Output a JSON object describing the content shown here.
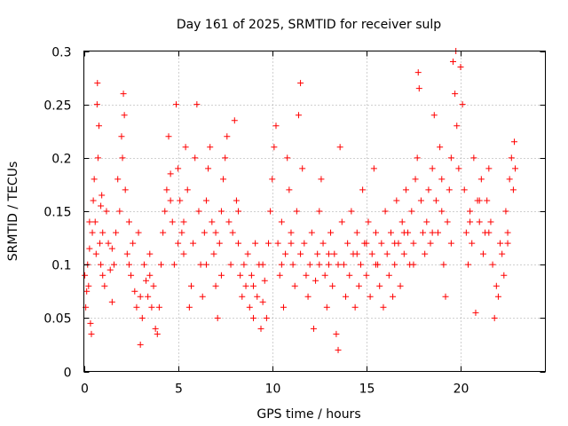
{
  "chart_data": {
    "type": "scatter",
    "title": "Day 161 of 2025, SRMTID for receiver sulp",
    "xlabel": "GPS time / hours",
    "ylabel": "SRMTID / TECUs",
    "xlim": [
      0,
      24.5
    ],
    "ylim": [
      0,
      0.3
    ],
    "xticks": [
      0,
      5,
      10,
      15,
      20
    ],
    "xtick_labels": [
      "0",
      "5",
      "10",
      "15",
      "20"
    ],
    "yticks": [
      0,
      0.05,
      0.1,
      0.15,
      0.2,
      0.25,
      0.3
    ],
    "ytick_labels": [
      "0",
      "0.05",
      "0.1",
      "0.15",
      "0.2",
      "0.25",
      "0.3"
    ],
    "grid": true,
    "marker": "plus",
    "color": "#ff0000",
    "series": [
      {
        "name": "SRMTID",
        "points": [
          [
            0.05,
            0.09
          ],
          [
            0.1,
            0.06
          ],
          [
            0.15,
            0.075
          ],
          [
            0.2,
            0.1
          ],
          [
            0.25,
            0.08
          ],
          [
            0.3,
            0.115
          ],
          [
            0.35,
            0.045
          ],
          [
            0.4,
            0.035
          ],
          [
            0.45,
            0.13
          ],
          [
            0.5,
            0.16
          ],
          [
            0.55,
            0.18
          ],
          [
            0.6,
            0.14
          ],
          [
            0.65,
            0.11
          ],
          [
            0.7,
            0.25
          ],
          [
            0.72,
            0.27
          ],
          [
            0.75,
            0.2
          ],
          [
            0.8,
            0.23
          ],
          [
            0.85,
            0.12
          ],
          [
            0.9,
            0.1
          ],
          [
            0.95,
            0.165
          ],
          [
            1.0,
            0.13
          ],
          [
            1.1,
            0.08
          ],
          [
            1.2,
            0.15
          ],
          [
            1.3,
            0.12
          ],
          [
            1.4,
            0.095
          ],
          [
            1.5,
            0.065
          ],
          [
            1.6,
            0.1
          ],
          [
            1.7,
            0.13
          ],
          [
            1.8,
            0.18
          ],
          [
            1.9,
            0.15
          ],
          [
            2.0,
            0.22
          ],
          [
            2.05,
            0.2
          ],
          [
            2.1,
            0.26
          ],
          [
            2.15,
            0.24
          ],
          [
            2.2,
            0.17
          ],
          [
            2.3,
            0.11
          ],
          [
            2.4,
            0.14
          ],
          [
            2.5,
            0.09
          ],
          [
            2.6,
            0.12
          ],
          [
            2.7,
            0.075
          ],
          [
            2.8,
            0.06
          ],
          [
            2.9,
            0.13
          ],
          [
            3.0,
            0.025
          ],
          [
            3.1,
            0.05
          ],
          [
            3.2,
            0.1
          ],
          [
            3.3,
            0.085
          ],
          [
            3.4,
            0.07
          ],
          [
            3.5,
            0.09
          ],
          [
            3.6,
            0.06
          ],
          [
            3.7,
            0.08
          ],
          [
            3.8,
            0.04
          ],
          [
            3.9,
            0.035
          ],
          [
            4.0,
            0.06
          ],
          [
            4.1,
            0.1
          ],
          [
            4.2,
            0.13
          ],
          [
            4.3,
            0.15
          ],
          [
            4.4,
            0.17
          ],
          [
            4.5,
            0.22
          ],
          [
            4.6,
            0.185
          ],
          [
            4.7,
            0.14
          ],
          [
            4.8,
            0.1
          ],
          [
            4.9,
            0.25
          ],
          [
            5.0,
            0.19
          ],
          [
            5.1,
            0.16
          ],
          [
            5.2,
            0.13
          ],
          [
            5.3,
            0.11
          ],
          [
            5.4,
            0.21
          ],
          [
            5.5,
            0.17
          ],
          [
            5.6,
            0.06
          ],
          [
            5.7,
            0.08
          ],
          [
            5.8,
            0.12
          ],
          [
            5.9,
            0.2
          ],
          [
            6.0,
            0.25
          ],
          [
            6.1,
            0.15
          ],
          [
            6.2,
            0.1
          ],
          [
            6.3,
            0.07
          ],
          [
            6.4,
            0.13
          ],
          [
            6.5,
            0.16
          ],
          [
            6.6,
            0.19
          ],
          [
            6.7,
            0.21
          ],
          [
            6.8,
            0.14
          ],
          [
            6.9,
            0.11
          ],
          [
            7.0,
            0.08
          ],
          [
            7.1,
            0.05
          ],
          [
            7.2,
            0.12
          ],
          [
            7.3,
            0.15
          ],
          [
            7.4,
            0.18
          ],
          [
            7.5,
            0.2
          ],
          [
            7.6,
            0.22
          ],
          [
            7.7,
            0.14
          ],
          [
            7.8,
            0.1
          ],
          [
            7.9,
            0.13
          ],
          [
            8.0,
            0.235
          ],
          [
            8.1,
            0.16
          ],
          [
            8.2,
            0.12
          ],
          [
            8.3,
            0.09
          ],
          [
            8.4,
            0.07
          ],
          [
            8.5,
            0.1
          ],
          [
            8.6,
            0.08
          ],
          [
            8.7,
            0.11
          ],
          [
            8.8,
            0.06
          ],
          [
            8.9,
            0.09
          ],
          [
            9.0,
            0.05
          ],
          [
            9.1,
            0.12
          ],
          [
            9.2,
            0.07
          ],
          [
            9.3,
            0.1
          ],
          [
            9.4,
            0.04
          ],
          [
            9.5,
            0.065
          ],
          [
            9.6,
            0.085
          ],
          [
            9.7,
            0.05
          ],
          [
            9.8,
            0.12
          ],
          [
            9.9,
            0.15
          ],
          [
            10.0,
            0.18
          ],
          [
            10.1,
            0.21
          ],
          [
            10.2,
            0.23
          ],
          [
            10.3,
            0.12
          ],
          [
            10.4,
            0.09
          ],
          [
            10.5,
            0.14
          ],
          [
            10.6,
            0.06
          ],
          [
            10.7,
            0.11
          ],
          [
            10.8,
            0.2
          ],
          [
            10.9,
            0.17
          ],
          [
            11.0,
            0.13
          ],
          [
            11.1,
            0.1
          ],
          [
            11.2,
            0.08
          ],
          [
            11.3,
            0.15
          ],
          [
            11.4,
            0.24
          ],
          [
            11.5,
            0.27
          ],
          [
            11.6,
            0.19
          ],
          [
            11.7,
            0.12
          ],
          [
            11.8,
            0.09
          ],
          [
            11.9,
            0.07
          ],
          [
            12.0,
            0.1
          ],
          [
            12.1,
            0.13
          ],
          [
            12.2,
            0.04
          ],
          [
            12.3,
            0.085
          ],
          [
            12.4,
            0.11
          ],
          [
            12.5,
            0.15
          ],
          [
            12.6,
            0.18
          ],
          [
            12.7,
            0.12
          ],
          [
            12.8,
            0.09
          ],
          [
            12.9,
            0.06
          ],
          [
            13.0,
            0.1
          ],
          [
            13.1,
            0.13
          ],
          [
            13.2,
            0.08
          ],
          [
            13.3,
            0.11
          ],
          [
            13.4,
            0.035
          ],
          [
            13.5,
            0.02
          ],
          [
            13.6,
            0.21
          ],
          [
            13.7,
            0.14
          ],
          [
            13.8,
            0.1
          ],
          [
            13.9,
            0.07
          ],
          [
            14.0,
            0.12
          ],
          [
            14.1,
            0.09
          ],
          [
            14.2,
            0.15
          ],
          [
            14.3,
            0.11
          ],
          [
            14.4,
            0.06
          ],
          [
            14.5,
            0.13
          ],
          [
            14.6,
            0.08
          ],
          [
            14.7,
            0.1
          ],
          [
            14.8,
            0.17
          ],
          [
            14.9,
            0.12
          ],
          [
            15.0,
            0.09
          ],
          [
            15.1,
            0.14
          ],
          [
            15.2,
            0.07
          ],
          [
            15.3,
            0.11
          ],
          [
            15.4,
            0.19
          ],
          [
            15.5,
            0.13
          ],
          [
            15.6,
            0.1
          ],
          [
            15.7,
            0.08
          ],
          [
            15.8,
            0.12
          ],
          [
            15.9,
            0.06
          ],
          [
            16.0,
            0.15
          ],
          [
            16.1,
            0.11
          ],
          [
            16.2,
            0.09
          ],
          [
            16.3,
            0.13
          ],
          [
            16.4,
            0.07
          ],
          [
            16.5,
            0.1
          ],
          [
            16.6,
            0.16
          ],
          [
            16.7,
            0.12
          ],
          [
            16.8,
            0.08
          ],
          [
            16.9,
            0.14
          ],
          [
            17.0,
            0.11
          ],
          [
            17.1,
            0.17
          ],
          [
            17.2,
            0.13
          ],
          [
            17.3,
            0.1
          ],
          [
            17.4,
            0.15
          ],
          [
            17.5,
            0.12
          ],
          [
            17.6,
            0.18
          ],
          [
            17.7,
            0.2
          ],
          [
            17.75,
            0.28
          ],
          [
            17.8,
            0.265
          ],
          [
            17.9,
            0.16
          ],
          [
            18.0,
            0.13
          ],
          [
            18.1,
            0.11
          ],
          [
            18.2,
            0.14
          ],
          [
            18.3,
            0.17
          ],
          [
            18.4,
            0.12
          ],
          [
            18.5,
            0.19
          ],
          [
            18.6,
            0.24
          ],
          [
            18.7,
            0.16
          ],
          [
            18.8,
            0.13
          ],
          [
            18.9,
            0.21
          ],
          [
            19.0,
            0.18
          ],
          [
            19.1,
            0.1
          ],
          [
            19.2,
            0.07
          ],
          [
            19.3,
            0.14
          ],
          [
            19.4,
            0.17
          ],
          [
            19.5,
            0.2
          ],
          [
            19.6,
            0.29
          ],
          [
            19.7,
            0.26
          ],
          [
            19.75,
            0.3
          ],
          [
            19.8,
            0.23
          ],
          [
            19.9,
            0.19
          ],
          [
            20.0,
            0.285
          ],
          [
            20.1,
            0.25
          ],
          [
            20.2,
            0.17
          ],
          [
            20.3,
            0.13
          ],
          [
            20.4,
            0.1
          ],
          [
            20.5,
            0.15
          ],
          [
            20.6,
            0.12
          ],
          [
            20.7,
            0.2
          ],
          [
            20.8,
            0.055
          ],
          [
            20.9,
            0.16
          ],
          [
            21.0,
            0.14
          ],
          [
            21.1,
            0.18
          ],
          [
            21.2,
            0.11
          ],
          [
            21.3,
            0.13
          ],
          [
            21.4,
            0.16
          ],
          [
            21.5,
            0.19
          ],
          [
            21.6,
            0.14
          ],
          [
            21.7,
            0.1
          ],
          [
            21.8,
            0.05
          ],
          [
            21.9,
            0.08
          ],
          [
            22.0,
            0.07
          ],
          [
            22.1,
            0.12
          ],
          [
            22.2,
            0.11
          ],
          [
            22.3,
            0.09
          ],
          [
            22.4,
            0.15
          ],
          [
            22.5,
            0.13
          ],
          [
            22.6,
            0.18
          ],
          [
            22.7,
            0.2
          ],
          [
            22.8,
            0.17
          ],
          [
            22.85,
            0.215
          ],
          [
            22.9,
            0.19
          ],
          [
            0.3,
            0.14
          ],
          [
            0.9,
            0.155
          ],
          [
            1.5,
            0.115
          ],
          [
            2.4,
            0.1
          ],
          [
            3.5,
            0.11
          ],
          [
            4.6,
            0.16
          ],
          [
            5.3,
            0.14
          ],
          [
            6.5,
            0.1
          ],
          [
            7.3,
            0.09
          ],
          [
            8.2,
            0.15
          ],
          [
            9.5,
            0.1
          ],
          [
            10.5,
            0.1
          ],
          [
            11.5,
            0.11
          ],
          [
            12.5,
            0.1
          ],
          [
            13.5,
            0.1
          ],
          [
            14.5,
            0.11
          ],
          [
            15.5,
            0.1
          ],
          [
            16.5,
            0.12
          ],
          [
            17.5,
            0.1
          ],
          [
            18.5,
            0.13
          ],
          [
            19.5,
            0.12
          ],
          [
            20.5,
            0.14
          ],
          [
            21.5,
            0.13
          ],
          [
            22.5,
            0.12
          ],
          [
            1.0,
            0.09
          ],
          [
            3.0,
            0.07
          ],
          [
            5.0,
            0.12
          ],
          [
            7.0,
            0.13
          ],
          [
            9.0,
            0.08
          ],
          [
            11.0,
            0.12
          ],
          [
            13.0,
            0.11
          ],
          [
            15.0,
            0.12
          ],
          [
            17.0,
            0.13
          ],
          [
            19.0,
            0.15
          ],
          [
            21.0,
            0.16
          ]
        ]
      }
    ]
  }
}
